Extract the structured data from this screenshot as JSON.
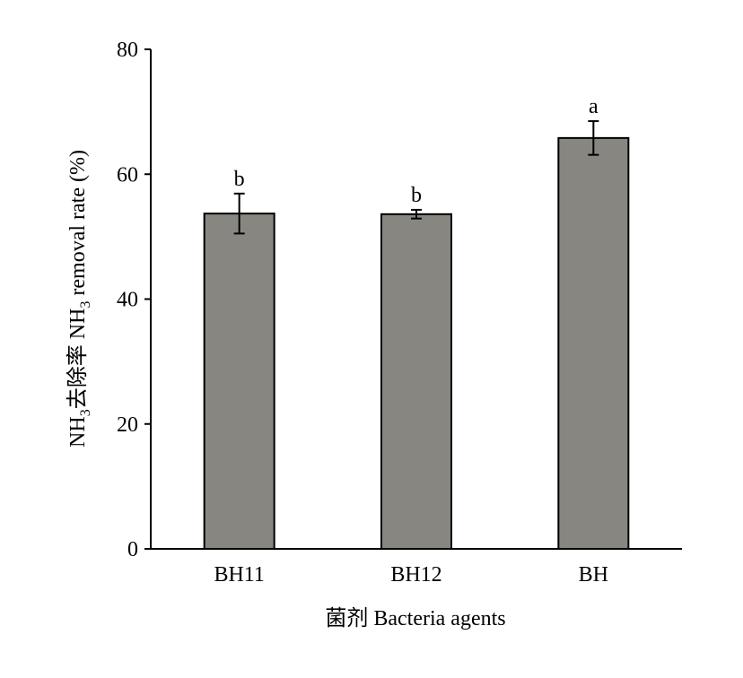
{
  "chart_data": {
    "type": "bar",
    "categories": [
      "BH11",
      "BH12",
      "BH"
    ],
    "values": [
      53.7,
      53.6,
      65.8
    ],
    "errors": [
      3.2,
      0.7,
      2.7
    ],
    "significance_letters": [
      "b",
      "b",
      "a"
    ],
    "xlabel": "菌剂 Bacteria agents",
    "ylabel_prefix": "NH",
    "ylabel_sub1": "3",
    "ylabel_middle": "去除率 NH",
    "ylabel_sub2": "3",
    "ylabel_suffix": " removal rate (%)",
    "ylim": [
      0,
      80
    ],
    "yticks": [
      0,
      20,
      40,
      60,
      80
    ],
    "bar_color": "#878681",
    "grid": false,
    "legend": "none"
  }
}
